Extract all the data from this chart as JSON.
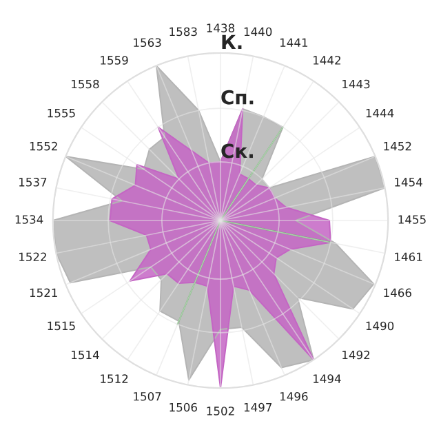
{
  "chart_data": {
    "type": "radar",
    "categories": [
      "1438",
      "1440",
      "1441",
      "1442",
      "1443",
      "1444",
      "1452",
      "1454",
      "1455",
      "1461",
      "1466",
      "1490",
      "1492",
      "1494",
      "1496",
      "1497",
      "1502",
      "1506",
      "1507",
      "1512",
      "1514",
      "1515",
      "1521",
      "1522",
      "1534",
      "1537",
      "1552",
      "1555",
      "1558",
      "1559",
      "1563",
      "1583"
    ],
    "series": [
      {
        "color": "#b4b4b4",
        "values": [
          0.35,
          0.68,
          0.67,
          0.67,
          0.35,
          0.35,
          1.0,
          1.0,
          0.45,
          0.7,
          0.99,
          0.95,
          0.65,
          1.0,
          0.95,
          0.65,
          0.65,
          0.97,
          0.65,
          0.65,
          0.5,
          0.5,
          0.97,
          1.0,
          1.0,
          0.6,
          1.0,
          0.55,
          0.6,
          0.6,
          1.0,
          0.67
        ]
      },
      {
        "color": "#c465c4",
        "values": [
          0.35,
          0.68,
          0.3,
          0.3,
          0.3,
          0.35,
          0.35,
          0.4,
          0.65,
          0.67,
          0.45,
          0.4,
          0.45,
          1.0,
          0.45,
          0.4,
          1.0,
          0.4,
          0.4,
          0.45,
          0.45,
          0.65,
          0.45,
          0.45,
          0.66,
          0.66,
          0.55,
          0.6,
          0.35,
          0.67,
          0.45,
          0.35
        ]
      },
      {
        "color": "#5aac5a",
        "values": [
          0,
          0,
          0,
          0.67,
          0,
          0,
          0,
          0,
          0,
          0.67,
          0,
          0,
          0,
          0,
          0,
          0,
          0,
          0,
          0.67,
          0,
          0,
          0,
          0,
          0,
          0,
          0,
          0,
          0,
          0,
          0,
          0,
          0
        ]
      }
    ],
    "ylim": [
      0,
      1
    ],
    "yticks": [
      {
        "value": 0.35,
        "label": "Ск."
      },
      {
        "value": 0.67,
        "label": "Сп."
      },
      {
        "value": 1,
        "label": "К."
      }
    ],
    "grid": true
  }
}
